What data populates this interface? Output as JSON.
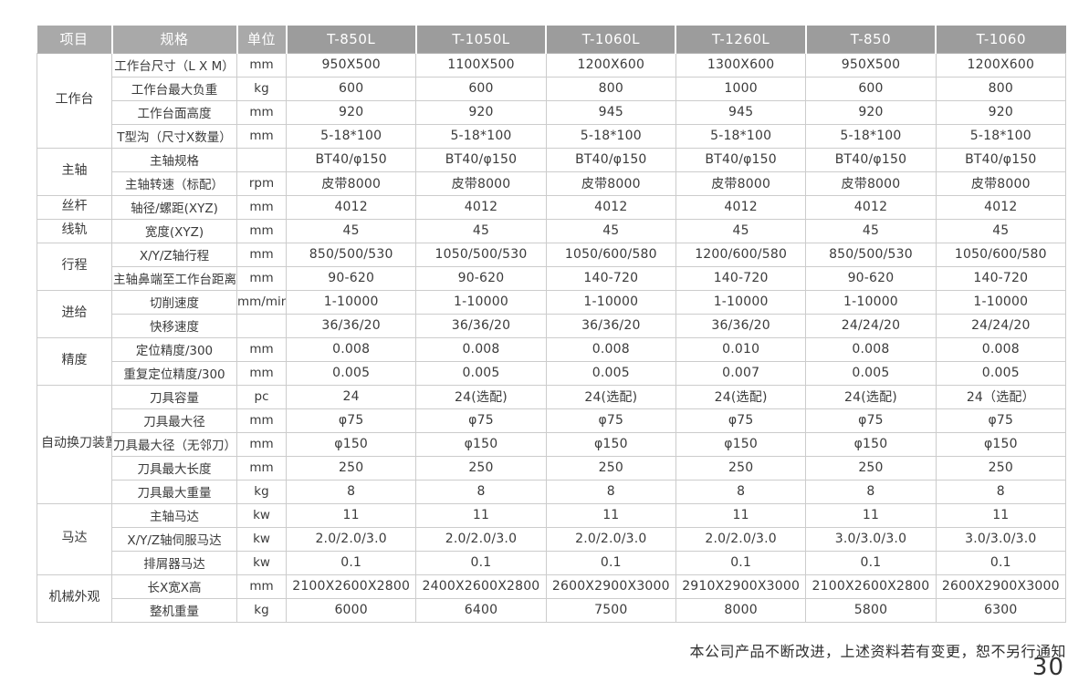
{
  "table": {
    "item_header": "项目",
    "spec_header": "规格",
    "unit_header": "单位",
    "models": [
      "T-850L",
      "T-1050L",
      "T-1060L",
      "T-1260L",
      "T-850",
      "T-1060"
    ],
    "groups": [
      {
        "category": "工作台",
        "rows": [
          {
            "spec": "工作台尺寸（L X M）",
            "unit": "mm",
            "values": [
              "950X500",
              "1100X500",
              "1200X600",
              "1300X600",
              "950X500",
              "1200X600"
            ]
          },
          {
            "spec": "工作台最大负重",
            "unit": "kg",
            "values": [
              "600",
              "600",
              "800",
              "1000",
              "600",
              "800"
            ]
          },
          {
            "spec": "工作台面高度",
            "unit": "mm",
            "values": [
              "920",
              "920",
              "945",
              "945",
              "920",
              "920"
            ]
          },
          {
            "spec": "T型沟（尺寸X数量）",
            "unit": "mm",
            "values": [
              "5-18*100",
              "5-18*100",
              "5-18*100",
              "5-18*100",
              "5-18*100",
              "5-18*100"
            ]
          }
        ]
      },
      {
        "category": "主轴",
        "rows": [
          {
            "spec": "主轴规格",
            "unit": "",
            "values": [
              "BT40/φ150",
              "BT40/φ150",
              "BT40/φ150",
              "BT40/φ150",
              "BT40/φ150",
              "BT40/φ150"
            ]
          },
          {
            "spec": "主轴转速（标配）",
            "unit": "rpm",
            "values": [
              "皮带8000",
              "皮带8000",
              "皮带8000",
              "皮带8000",
              "皮带8000",
              "皮带8000"
            ]
          }
        ]
      },
      {
        "category": "丝杆",
        "rows": [
          {
            "spec": "轴径/螺距(XYZ)",
            "unit": "mm",
            "values": [
              "4012",
              "4012",
              "4012",
              "4012",
              "4012",
              "4012"
            ]
          }
        ]
      },
      {
        "category": "线轨",
        "rows": [
          {
            "spec": "宽度(XYZ)",
            "unit": "mm",
            "values": [
              "45",
              "45",
              "45",
              "45",
              "45",
              "45"
            ]
          }
        ]
      },
      {
        "category": "行程",
        "rows": [
          {
            "spec": "X/Y/Z轴行程",
            "unit": "mm",
            "values": [
              "850/500/530",
              "1050/500/530",
              "1050/600/580",
              "1200/600/580",
              "850/500/530",
              "1050/600/580"
            ]
          },
          {
            "spec": "主轴鼻端至工作台距离",
            "unit": "mm",
            "values": [
              "90-620",
              "90-620",
              "140-720",
              "140-720",
              "90-620",
              "140-720"
            ]
          }
        ]
      },
      {
        "category": "进给",
        "rows": [
          {
            "spec": "切削速度",
            "unit": "mm/min",
            "values": [
              "1-10000",
              "1-10000",
              "1-10000",
              "1-10000",
              "1-10000",
              "1-10000"
            ]
          },
          {
            "spec": "快移速度",
            "unit": "",
            "values": [
              "36/36/20",
              "36/36/20",
              "36/36/20",
              "36/36/20",
              "24/24/20",
              "24/24/20"
            ]
          }
        ]
      },
      {
        "category": "精度",
        "rows": [
          {
            "spec": "定位精度/300",
            "unit": "mm",
            "values": [
              "0.008",
              "0.008",
              "0.008",
              "0.010",
              "0.008",
              "0.008"
            ]
          },
          {
            "spec": "重复定位精度/300",
            "unit": "mm",
            "values": [
              "0.005",
              "0.005",
              "0.005",
              "0.007",
              "0.005",
              "0.005"
            ]
          }
        ]
      },
      {
        "category": "自动换刀装置（ATC）",
        "rows": [
          {
            "spec": "刀具容量",
            "unit": "pc",
            "values": [
              "24",
              "24(选配)",
              "24(选配)",
              "24(选配)",
              "24(选配)",
              "24（选配）"
            ]
          },
          {
            "spec": "刀具最大径",
            "unit": "mm",
            "values": [
              "φ75",
              "φ75",
              "φ75",
              "φ75",
              "φ75",
              "φ75"
            ]
          },
          {
            "spec": "刀具最大径（无邻刀）",
            "unit": "mm",
            "values": [
              "φ150",
              "φ150",
              "φ150",
              "φ150",
              "φ150",
              "φ150"
            ]
          },
          {
            "spec": "刀具最大长度",
            "unit": "mm",
            "values": [
              "250",
              "250",
              "250",
              "250",
              "250",
              "250"
            ]
          },
          {
            "spec": "刀具最大重量",
            "unit": "kg",
            "values": [
              "8",
              "8",
              "8",
              "8",
              "8",
              "8"
            ]
          }
        ]
      },
      {
        "category": "马达",
        "rows": [
          {
            "spec": "主轴马达",
            "unit": "kw",
            "values": [
              "11",
              "11",
              "11",
              "11",
              "11",
              "11"
            ]
          },
          {
            "spec": "X/Y/Z轴伺服马达",
            "unit": "kw",
            "values": [
              "2.0/2.0/3.0",
              "2.0/2.0/3.0",
              "2.0/2.0/3.0",
              "2.0/2.0/3.0",
              "3.0/3.0/3.0",
              "3.0/3.0/3.0"
            ]
          },
          {
            "spec": "排屑器马达",
            "unit": "kw",
            "values": [
              "0.1",
              "0.1",
              "0.1",
              "0.1",
              "0.1",
              "0.1"
            ]
          }
        ]
      },
      {
        "category": "机械外观",
        "rows": [
          {
            "spec": "长X宽X高",
            "unit": "mm",
            "values": [
              "2100X2600X2800",
              "2400X2600X2800",
              "2600X2900X3000",
              "2910X2900X3000",
              "2100X2600X2800",
              "2600X2900X3000"
            ]
          },
          {
            "spec": "整机重量",
            "unit": "kg",
            "values": [
              "6000",
              "6400",
              "7500",
              "8000",
              "5800",
              "6300"
            ]
          }
        ]
      }
    ]
  },
  "footer": {
    "note": "本公司产品不断改进，上述资料若有变更，恕不另行通知",
    "page_number": "30"
  },
  "colors": {
    "header_bg_left": "#a9a9a9",
    "header_bg_model": "#9c9c9c",
    "border": "#cccccc",
    "text": "#3b3b3b"
  }
}
